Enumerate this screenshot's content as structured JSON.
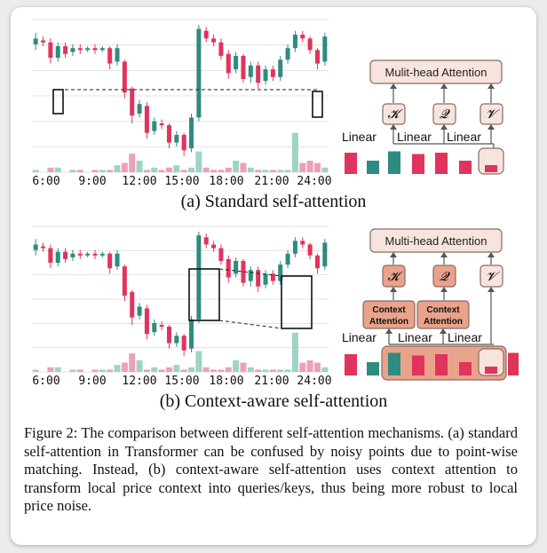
{
  "colors": {
    "up": "#2e8b81",
    "down": "#e0345d",
    "vol_up": "#9fd3c8",
    "vol_down": "#eda0b5",
    "box_fill": "#f7e4de",
    "box_stroke": "#8a6a63",
    "ctx_fill": "#e8a38a",
    "grid": "#e3e3e3"
  },
  "x_ticks": [
    "6:00",
    "9:00",
    "12:00",
    "15:00",
    "18:00",
    "21:00",
    "24:00"
  ],
  "candles": [
    {
      "o": 8.9,
      "c": 9.2,
      "h": 9.5,
      "l": 8.6
    },
    {
      "o": 9.1,
      "c": 9.0,
      "h": 9.3,
      "l": 8.8
    },
    {
      "o": 9.0,
      "c": 8.2,
      "h": 9.2,
      "l": 7.9
    },
    {
      "o": 8.2,
      "c": 8.8,
      "h": 9.0,
      "l": 8.0
    },
    {
      "o": 8.8,
      "c": 8.4,
      "h": 9.0,
      "l": 8.2
    },
    {
      "o": 8.5,
      "c": 8.7,
      "h": 8.9,
      "l": 8.3
    },
    {
      "o": 8.7,
      "c": 8.6,
      "h": 8.9,
      "l": 8.4
    },
    {
      "o": 8.6,
      "c": 8.7,
      "h": 8.8,
      "l": 8.5
    },
    {
      "o": 8.7,
      "c": 8.6,
      "h": 8.9,
      "l": 8.4
    },
    {
      "o": 8.6,
      "c": 8.7,
      "h": 8.8,
      "l": 8.5
    },
    {
      "o": 8.7,
      "c": 7.9,
      "h": 8.8,
      "l": 7.6
    },
    {
      "o": 8.0,
      "c": 8.7,
      "h": 8.9,
      "l": 7.8
    },
    {
      "o": 8.0,
      "c": 6.4,
      "h": 8.1,
      "l": 6.1
    },
    {
      "o": 6.6,
      "c": 5.2,
      "h": 6.7,
      "l": 4.8
    },
    {
      "o": 5.3,
      "c": 5.8,
      "h": 6.0,
      "l": 5.1
    },
    {
      "o": 5.7,
      "c": 4.3,
      "h": 5.9,
      "l": 4.0
    },
    {
      "o": 4.4,
      "c": 4.9,
      "h": 5.1,
      "l": 4.2
    },
    {
      "o": 4.8,
      "c": 4.7,
      "h": 5.0,
      "l": 4.5
    },
    {
      "o": 4.7,
      "c": 3.8,
      "h": 4.8,
      "l": 3.5
    },
    {
      "o": 3.8,
      "c": 4.2,
      "h": 4.4,
      "l": 3.6
    },
    {
      "o": 4.2,
      "c": 3.4,
      "h": 4.3,
      "l": 3.1
    },
    {
      "o": 3.5,
      "c": 5.1,
      "h": 5.3,
      "l": 3.3
    },
    {
      "o": 5.1,
      "c": 9.7,
      "h": 9.9,
      "l": 4.9
    },
    {
      "o": 9.6,
      "c": 9.2,
      "h": 9.8,
      "l": 9.0
    },
    {
      "o": 9.2,
      "c": 9.0,
      "h": 9.4,
      "l": 8.8
    },
    {
      "o": 9.0,
      "c": 8.3,
      "h": 9.2,
      "l": 8.1
    },
    {
      "o": 8.4,
      "c": 7.4,
      "h": 8.6,
      "l": 7.1
    },
    {
      "o": 7.6,
      "c": 8.3,
      "h": 8.5,
      "l": 7.4
    },
    {
      "o": 8.3,
      "c": 7.1,
      "h": 8.4,
      "l": 6.9
    },
    {
      "o": 7.2,
      "c": 7.8,
      "h": 8.0,
      "l": 6.9
    },
    {
      "o": 7.8,
      "c": 6.9,
      "h": 8.0,
      "l": 6.6
    },
    {
      "o": 7.0,
      "c": 7.6,
      "h": 7.8,
      "l": 6.8
    },
    {
      "o": 7.6,
      "c": 7.2,
      "h": 7.8,
      "l": 7.0
    },
    {
      "o": 7.2,
      "c": 8.1,
      "h": 8.3,
      "l": 7.0
    },
    {
      "o": 8.1,
      "c": 8.7,
      "h": 8.9,
      "l": 7.9
    },
    {
      "o": 8.7,
      "c": 9.4,
      "h": 9.6,
      "l": 8.5
    },
    {
      "o": 9.4,
      "c": 9.2,
      "h": 9.6,
      "l": 9.0
    },
    {
      "o": 9.2,
      "c": 8.6,
      "h": 9.3,
      "l": 8.4
    },
    {
      "o": 8.6,
      "c": 7.9,
      "h": 8.7,
      "l": 7.6
    },
    {
      "o": 8.0,
      "c": 9.3,
      "h": 9.5,
      "l": 7.8
    }
  ],
  "volumes": [
    1,
    0,
    2,
    2,
    0,
    1,
    1,
    0,
    1,
    1,
    1,
    3,
    4,
    8,
    5,
    1,
    2,
    1,
    2,
    3,
    1,
    2,
    9,
    2,
    1,
    1,
    2,
    5,
    4,
    2,
    1,
    1,
    1,
    1,
    1,
    17,
    4,
    5,
    4,
    2
  ],
  "panel_a": {
    "subtitle": "(a) Standard self-attention",
    "mha_label": "Mulit-head Attention",
    "k_label": "𝓚",
    "q_label": "𝓠",
    "v_label": "𝓥",
    "linear_labels": [
      "Linear",
      "Linear",
      "Linear"
    ],
    "seq_bars": [
      0.8,
      0.5,
      0.85,
      0.75,
      0.8,
      0.5,
      0.2
    ],
    "seq_bar_up": [
      false,
      true,
      true,
      false,
      false,
      false,
      false
    ]
  },
  "panel_b": {
    "subtitle": "(b) Context-aware self-attention",
    "mha_label": "Multi-head Attention",
    "k_label": "𝓚",
    "q_label": "𝓠",
    "v_label": "𝓥",
    "ctx_line1": "Context",
    "ctx_line2": "Attention",
    "linear_labels": [
      "Linear",
      "Linear",
      "Linear"
    ],
    "seq_bars": [
      0.8,
      0.5,
      0.85,
      0.75,
      0.8,
      0.5,
      0.2,
      0.85
    ],
    "seq_bar_up": [
      false,
      true,
      true,
      false,
      false,
      false,
      false,
      false
    ]
  },
  "caption": "Figure 2: The comparison between different self-attention mechanisms. (a) standard self-attention in Transformer can be confused by noisy points due to point-wise matching. Instead, (b) context-aware self-attention uses context attention to transform local price context into queries/keys, thus being more robust to local price noise."
}
